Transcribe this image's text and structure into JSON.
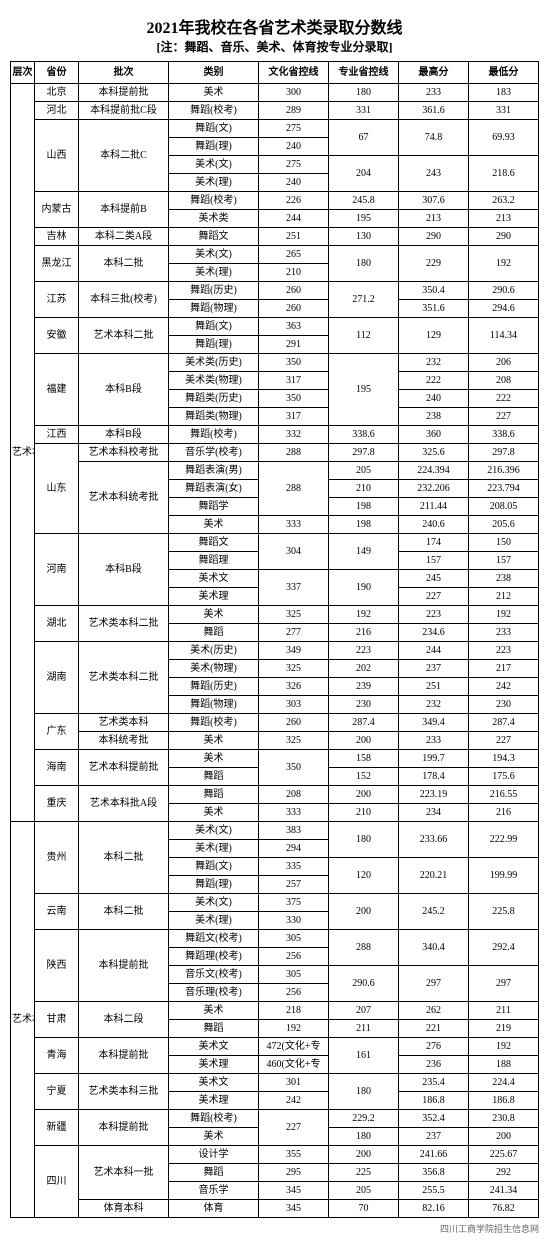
{
  "title": "2021年我校在各省艺术类录取分数线",
  "subtitle": "[注：舞蹈、音乐、美术、体育按专业分录取]",
  "footer": "四川工商学院招生信息网",
  "headers": [
    "层次",
    "省份",
    "批次",
    "类别",
    "文化省控线",
    "专业省控线",
    "最高分",
    "最低分"
  ],
  "levels": [
    {
      "name": "艺术本科",
      "rows": [
        {
          "prov": "北京",
          "provspan": 1,
          "batch": "本科提前批",
          "batchspan": 1,
          "cat": "美术",
          "wl": "300",
          "zl": "180",
          "hi": "233",
          "lo": "183"
        },
        {
          "prov": "河北",
          "provspan": 1,
          "batch": "本科提前批C段",
          "batchspan": 1,
          "cat": "舞蹈(校考)",
          "wl": "289",
          "zl": "331",
          "hi": "361.6",
          "lo": "331"
        },
        {
          "prov": "山西",
          "provspan": 4,
          "batch": "本科二批C",
          "batchspan": 4,
          "cat": "舞蹈(文)",
          "wl": "275",
          "zl": "67",
          "zlspan": 2,
          "hi": "74.8",
          "hispan": 2,
          "lo": "69.93",
          "lospan": 2
        },
        {
          "cat": "舞蹈(理)",
          "wl": "240"
        },
        {
          "cat": "美术(文)",
          "wl": "275",
          "zl": "204",
          "zlspan": 2,
          "hi": "243",
          "hispan": 2,
          "lo": "218.6",
          "lospan": 2
        },
        {
          "cat": "美术(理)",
          "wl": "240"
        },
        {
          "prov": "内蒙古",
          "provspan": 2,
          "batch": "本科提前B",
          "batchspan": 2,
          "cat": "舞蹈(校考)",
          "wl": "226",
          "zl": "245.8",
          "hi": "307.6",
          "lo": "263.2"
        },
        {
          "cat": "美术类",
          "wl": "244",
          "zl": "195",
          "hi": "213",
          "lo": "213"
        },
        {
          "prov": "吉林",
          "provspan": 1,
          "batch": "本科二类A段",
          "batchspan": 1,
          "cat": "舞蹈文",
          "wl": "251",
          "zl": "130",
          "hi": "290",
          "lo": "290"
        },
        {
          "prov": "黑龙江",
          "provspan": 2,
          "batch": "本科二批",
          "batchspan": 2,
          "cat": "美术(文)",
          "wl": "265",
          "zl": "180",
          "zlspan": 2,
          "hi": "229",
          "hispan": 2,
          "lo": "192",
          "lospan": 2
        },
        {
          "cat": "美术(理)",
          "wl": "210"
        },
        {
          "prov": "江苏",
          "provspan": 2,
          "batch": "本科三批(校考)",
          "batchspan": 2,
          "cat": "舞蹈(历史)",
          "wl": "260",
          "zl": "271.2",
          "zlspan": 2,
          "hi": "350.4",
          "lo": "290.6"
        },
        {
          "cat": "舞蹈(物理)",
          "wl": "260",
          "hi": "351.6",
          "lo": "294.6"
        },
        {
          "prov": "安徽",
          "provspan": 2,
          "batch": "艺术本科二批",
          "batchspan": 2,
          "cat": "舞蹈(文)",
          "wl": "363",
          "zl": "112",
          "zlspan": 2,
          "hi": "129",
          "hispan": 2,
          "lo": "114.34",
          "lospan": 2
        },
        {
          "cat": "舞蹈(理)",
          "wl": "291"
        },
        {
          "prov": "福建",
          "provspan": 4,
          "batch": "本科B段",
          "batchspan": 4,
          "cat": "美术类(历史)",
          "wl": "350",
          "zl": "195",
          "zlspan": 4,
          "hi": "232",
          "lo": "206"
        },
        {
          "cat": "美术类(物理)",
          "wl": "317",
          "hi": "222",
          "lo": "208"
        },
        {
          "cat": "舞蹈类(历史)",
          "wl": "350",
          "hi": "240",
          "lo": "222"
        },
        {
          "cat": "舞蹈类(物理)",
          "wl": "317",
          "hi": "238",
          "lo": "227"
        },
        {
          "prov": "江西",
          "provspan": 1,
          "batch": "本科B段",
          "batchspan": 1,
          "cat": "舞蹈(校考)",
          "wl": "332",
          "zl": "338.6",
          "hi": "360",
          "lo": "338.6"
        },
        {
          "prov": "山东",
          "provspan": 5,
          "batch": "艺术本科校考批",
          "batchspan": 1,
          "cat": "音乐学(校考)",
          "wl": "288",
          "zl": "297.8",
          "hi": "325.6",
          "lo": "297.8"
        },
        {
          "batch": "艺术本科统考批",
          "batchspan": 4,
          "cat": "舞蹈表演(男)",
          "wl": "288",
          "wlspan": 3,
          "zl": "205",
          "hi": "224.394",
          "lo": "216.396"
        },
        {
          "cat": "舞蹈表演(女)",
          "zl": "210",
          "hi": "232.206",
          "lo": "223.794"
        },
        {
          "cat": "舞蹈学",
          "zl": "198",
          "hi": "211.44",
          "lo": "208.05"
        },
        {
          "cat": "美术",
          "wl": "333",
          "zl": "198",
          "hi": "240.6",
          "lo": "205.6"
        },
        {
          "prov": "河南",
          "provspan": 4,
          "batch": "本科B段",
          "batchspan": 4,
          "cat": "舞蹈文",
          "wl": "304",
          "wlspan": 2,
          "zl": "149",
          "zlspan": 2,
          "hi": "174",
          "lo": "150"
        },
        {
          "cat": "舞蹈理",
          "hi": "157",
          "lo": "157"
        },
        {
          "cat": "美术文",
          "wl": "337",
          "wlspan": 2,
          "zl": "190",
          "zlspan": 2,
          "hi": "245",
          "lo": "238"
        },
        {
          "cat": "美术理",
          "hi": "227",
          "lo": "212"
        },
        {
          "prov": "湖北",
          "provspan": 2,
          "batch": "艺术类本科二批",
          "batchspan": 2,
          "cat": "美术",
          "wl": "325",
          "zl": "192",
          "hi": "223",
          "lo": "192"
        },
        {
          "cat": "舞蹈",
          "wl": "277",
          "zl": "216",
          "hi": "234.6",
          "lo": "233"
        },
        {
          "prov": "湖南",
          "provspan": 4,
          "batch": "艺术类本科二批",
          "batchspan": 4,
          "cat": "美术(历史)",
          "wl": "349",
          "zl": "223",
          "hi": "244",
          "lo": "223"
        },
        {
          "cat": "美术(物理)",
          "wl": "325",
          "zl": "202",
          "hi": "237",
          "lo": "217"
        },
        {
          "cat": "舞蹈(历史)",
          "wl": "326",
          "zl": "239",
          "hi": "251",
          "lo": "242"
        },
        {
          "cat": "舞蹈(物理)",
          "wl": "303",
          "zl": "230",
          "hi": "232",
          "lo": "230"
        },
        {
          "prov": "广东",
          "provspan": 2,
          "batch": "艺术类本科",
          "batchspan": 1,
          "cat": "舞蹈(校考)",
          "wl": "260",
          "zl": "287.4",
          "hi": "349.4",
          "lo": "287.4"
        },
        {
          "batch": "本科统考批",
          "batchspan": 1,
          "cat": "美术",
          "wl": "325",
          "zl": "200",
          "hi": "233",
          "lo": "227"
        },
        {
          "prov": "海南",
          "provspan": 2,
          "batch": "艺术本科提前批",
          "batchspan": 2,
          "cat": "美术",
          "wl": "350",
          "wlspan": 2,
          "zl": "158",
          "hi": "199.7",
          "lo": "194.3"
        },
        {
          "cat": "舞蹈",
          "zl": "152",
          "hi": "178.4",
          "lo": "175.6"
        },
        {
          "prov": "重庆",
          "provspan": 2,
          "batch": "艺术本科批A段",
          "batchspan": 2,
          "cat": "舞蹈",
          "wl": "208",
          "zl": "200",
          "hi": "223.19",
          "lo": "216.55"
        },
        {
          "cat": "美术",
          "wl": "333",
          "zl": "210",
          "hi": "234",
          "lo": "216"
        }
      ]
    },
    {
      "name": "艺术本科",
      "rows": [
        {
          "prov": "贵州",
          "provspan": 4,
          "batch": "本科二批",
          "batchspan": 4,
          "cat": "美术(文)",
          "wl": "383",
          "zl": "180",
          "zlspan": 2,
          "hi": "233.66",
          "hispan": 2,
          "lo": "222.99",
          "lospan": 2
        },
        {
          "cat": "美术(理)",
          "wl": "294"
        },
        {
          "cat": "舞蹈(文)",
          "wl": "335",
          "zl": "120",
          "zlspan": 2,
          "hi": "220.21",
          "hispan": 2,
          "lo": "199.99",
          "lospan": 2
        },
        {
          "cat": "舞蹈(理)",
          "wl": "257"
        },
        {
          "prov": "云南",
          "provspan": 2,
          "batch": "本科二批",
          "batchspan": 2,
          "cat": "美术(文)",
          "wl": "375",
          "zl": "200",
          "zlspan": 2,
          "hi": "245.2",
          "hispan": 2,
          "lo": "225.8",
          "lospan": 2
        },
        {
          "cat": "美术(理)",
          "wl": "330"
        },
        {
          "prov": "陕西",
          "provspan": 4,
          "batch": "本科提前批",
          "batchspan": 4,
          "cat": "舞蹈文(校考)",
          "wl": "305",
          "zl": "288",
          "zlspan": 2,
          "hi": "340.4",
          "hispan": 2,
          "lo": "292.4",
          "lospan": 2
        },
        {
          "cat": "舞蹈理(校考)",
          "wl": "256"
        },
        {
          "cat": "音乐文(校考)",
          "wl": "305",
          "zl": "290.6",
          "zlspan": 2,
          "hi": "297",
          "hispan": 2,
          "lo": "297",
          "lospan": 2
        },
        {
          "cat": "音乐理(校考)",
          "wl": "256"
        },
        {
          "prov": "甘肃",
          "provspan": 2,
          "batch": "本科二段",
          "batchspan": 2,
          "cat": "美术",
          "wl": "218",
          "zl": "207",
          "hi": "262",
          "lo": "211"
        },
        {
          "cat": "舞蹈",
          "wl": "192",
          "zl": "211",
          "hi": "221",
          "lo": "219"
        },
        {
          "prov": "青海",
          "provspan": 2,
          "batch": "本科提前批",
          "batchspan": 2,
          "cat": "美术文",
          "wl": "472(文化+专",
          "zl": "161",
          "zlspan": 2,
          "hi": "276",
          "lo": "192"
        },
        {
          "cat": "美术理",
          "wl": "460(文化+专",
          "hi": "236",
          "lo": "188"
        },
        {
          "prov": "宁夏",
          "provspan": 2,
          "batch": "艺术类本科三批",
          "batchspan": 2,
          "cat": "美术文",
          "wl": "301",
          "zl": "180",
          "zlspan": 2,
          "hi": "235.4",
          "lo": "224.4"
        },
        {
          "cat": "美术理",
          "wl": "242",
          "hi": "186.8",
          "lo": "186.8"
        },
        {
          "prov": "新疆",
          "provspan": 2,
          "batch": "本科提前批",
          "batchspan": 2,
          "cat": "舞蹈(校考)",
          "wl": "227",
          "wlspan": 2,
          "zl": "229.2",
          "hi": "352.4",
          "lo": "230.8"
        },
        {
          "cat": "美术",
          "zl": "180",
          "hi": "237",
          "lo": "200"
        },
        {
          "prov": "四川",
          "provspan": 4,
          "batch": "艺术本科一批",
          "batchspan": 3,
          "cat": "设计学",
          "wl": "355",
          "zl": "200",
          "hi": "241.66",
          "lo": "225.67"
        },
        {
          "cat": "舞蹈",
          "wl": "295",
          "zl": "225",
          "hi": "356.8",
          "lo": "292"
        },
        {
          "cat": "音乐学",
          "wl": "345",
          "zl": "205",
          "hi": "255.5",
          "lo": "241.34"
        },
        {
          "batch": "体育本科",
          "batchspan": 1,
          "cat": "体育",
          "wl": "345",
          "zl": "70",
          "hi": "82.16",
          "lo": "76.82"
        }
      ]
    }
  ]
}
